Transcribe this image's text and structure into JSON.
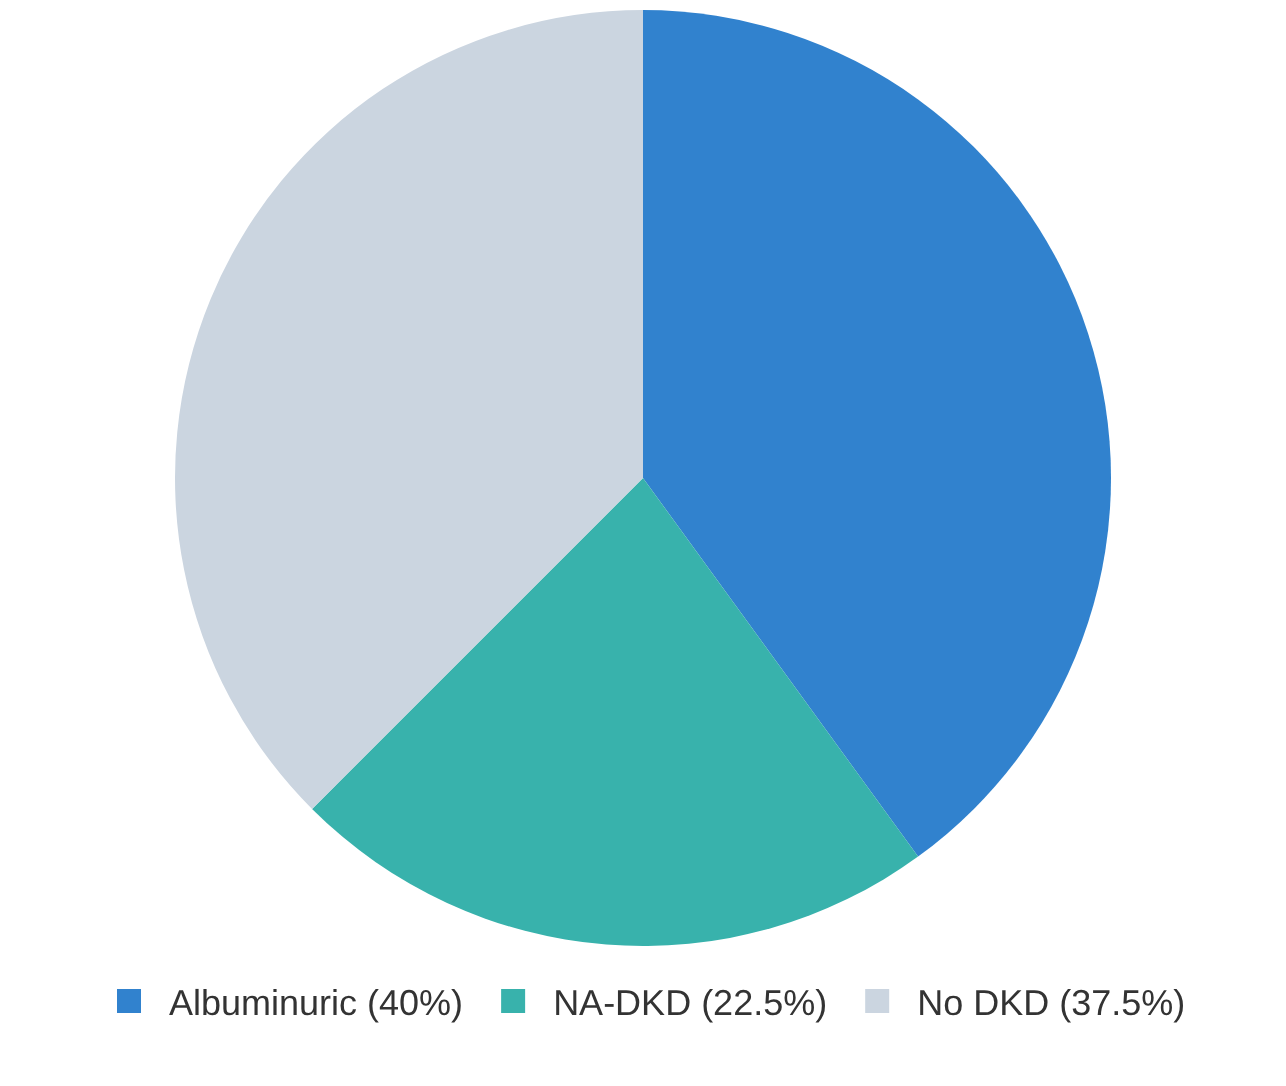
{
  "chart_data": {
    "type": "pie",
    "categories": [
      "Albuminuric (40%)",
      "NA-DKD (22.5%)",
      "No DKD (37.5%)"
    ],
    "values": [
      40,
      22.5,
      37.5
    ],
    "colors": [
      "#3182ce",
      "#38b2ac",
      "#cbd5e0"
    ],
    "legend": "bottom"
  }
}
